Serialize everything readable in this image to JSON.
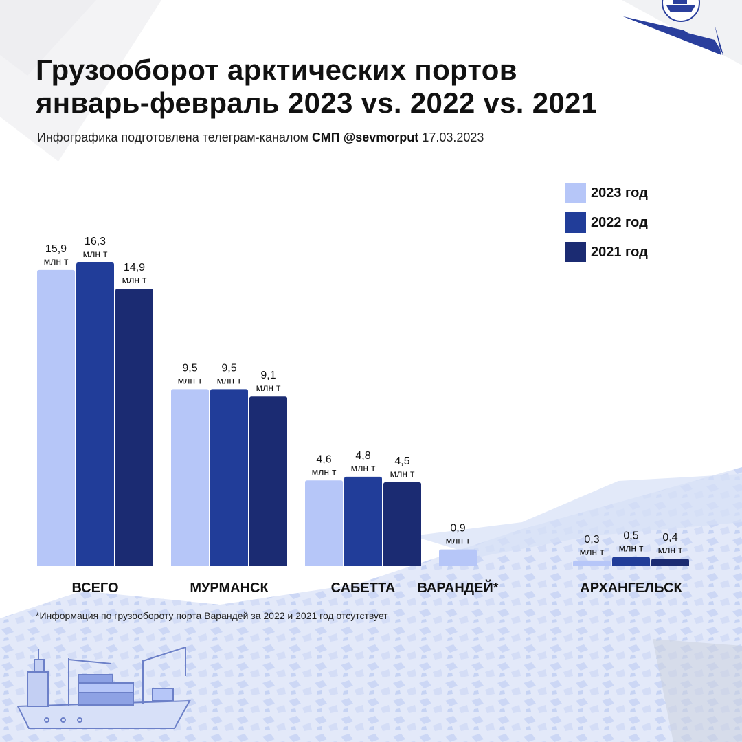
{
  "header": {
    "title_line1": "Грузооборот арктических портов",
    "title_line2": "январь-февраль 2023 vs. 2022 vs. 2021",
    "subtitle_prefix": "Инфографика подготовлена телеграм-каналом",
    "subtitle_channel": "СМП @sevmorput",
    "subtitle_date": "17.03.2023"
  },
  "footnote": "*Информация по  грузообороту порта Варандей за 2022 и 2021 год отсутствует",
  "icons": {
    "logo": "ship-emblem-icon",
    "illustration": "cargo-ship-icon"
  },
  "colors": {
    "y2023": "#b6c6f8",
    "y2022": "#213d99",
    "y2021": "#1b2b72",
    "accent": "#2a3f9d",
    "background_snow": "#dfe6f8"
  },
  "chart_data": {
    "type": "bar",
    "categories": [
      "ВСЕГО",
      "МУРМАНСК",
      "САБЕТТА",
      "ВАРАНДЕЙ*",
      "АРХАНГЕЛЬСК"
    ],
    "unit": "млн т",
    "series": [
      {
        "name": "2023 год",
        "color": "#b6c6f8",
        "values": [
          15.9,
          9.5,
          4.6,
          0.9,
          0.3
        ],
        "labels": [
          "15,9",
          "9,5",
          "4,6",
          "0,9",
          "0,3"
        ]
      },
      {
        "name": "2022 год",
        "color": "#213d99",
        "values": [
          16.3,
          9.5,
          4.8,
          null,
          0.5
        ],
        "labels": [
          "16,3",
          "9,5",
          "4,8",
          "",
          "0,5"
        ]
      },
      {
        "name": "2021 год",
        "color": "#1b2b72",
        "values": [
          14.9,
          9.1,
          4.5,
          null,
          0.4
        ],
        "labels": [
          "14,9",
          "9,1",
          "4,5",
          "",
          "0,4"
        ]
      }
    ],
    "ylim": [
      0,
      16.3
    ],
    "grid": false,
    "legend_position": "top-right"
  }
}
